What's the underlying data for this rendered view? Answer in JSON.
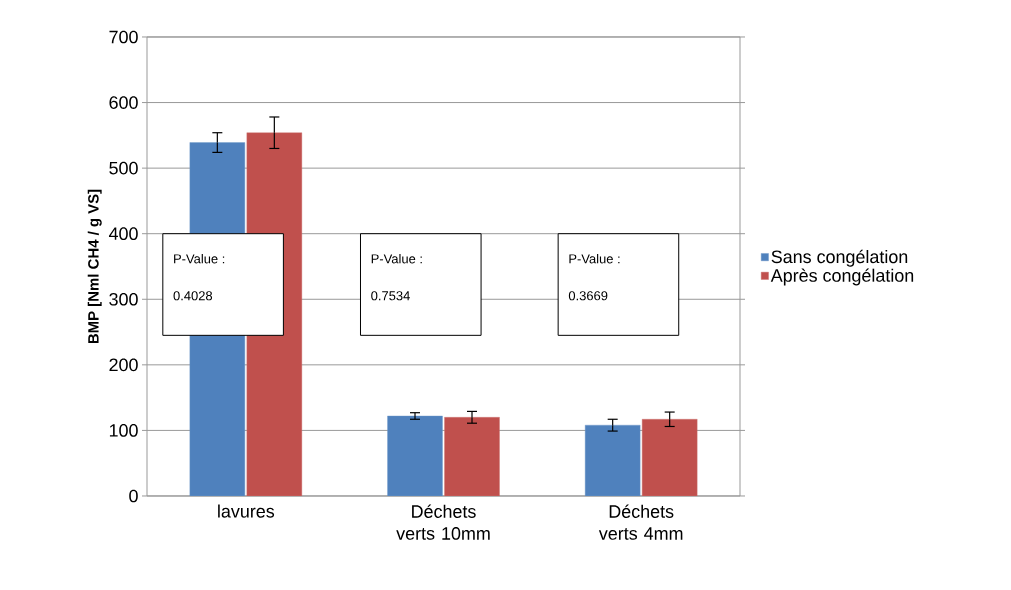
{
  "chart_data": {
    "type": "bar",
    "ylabel": "BMP  [Nml CH4 / g VS]",
    "categories": [
      "lavures",
      "Déchets verts 10mm",
      "Déchets verts 4mm"
    ],
    "series": [
      {
        "name": "Sans congélation",
        "color": "#4f81bd",
        "values": [
          539,
          122,
          108
        ],
        "errors": [
          15,
          5,
          9
        ]
      },
      {
        "name": "Après congélation",
        "color": "#c0504d",
        "values": [
          554,
          120,
          117
        ],
        "errors": [
          24,
          9,
          11
        ]
      }
    ],
    "ylim": [
      0,
      700
    ],
    "yticks": [
      0,
      100,
      200,
      300,
      400,
      500,
      600,
      700
    ],
    "grid": "y",
    "legend": "right",
    "annotations": [
      "P-Value :",
      "0.4028",
      "P-Value :",
      "0.7534",
      "P-Value :",
      "0.3669"
    ]
  }
}
